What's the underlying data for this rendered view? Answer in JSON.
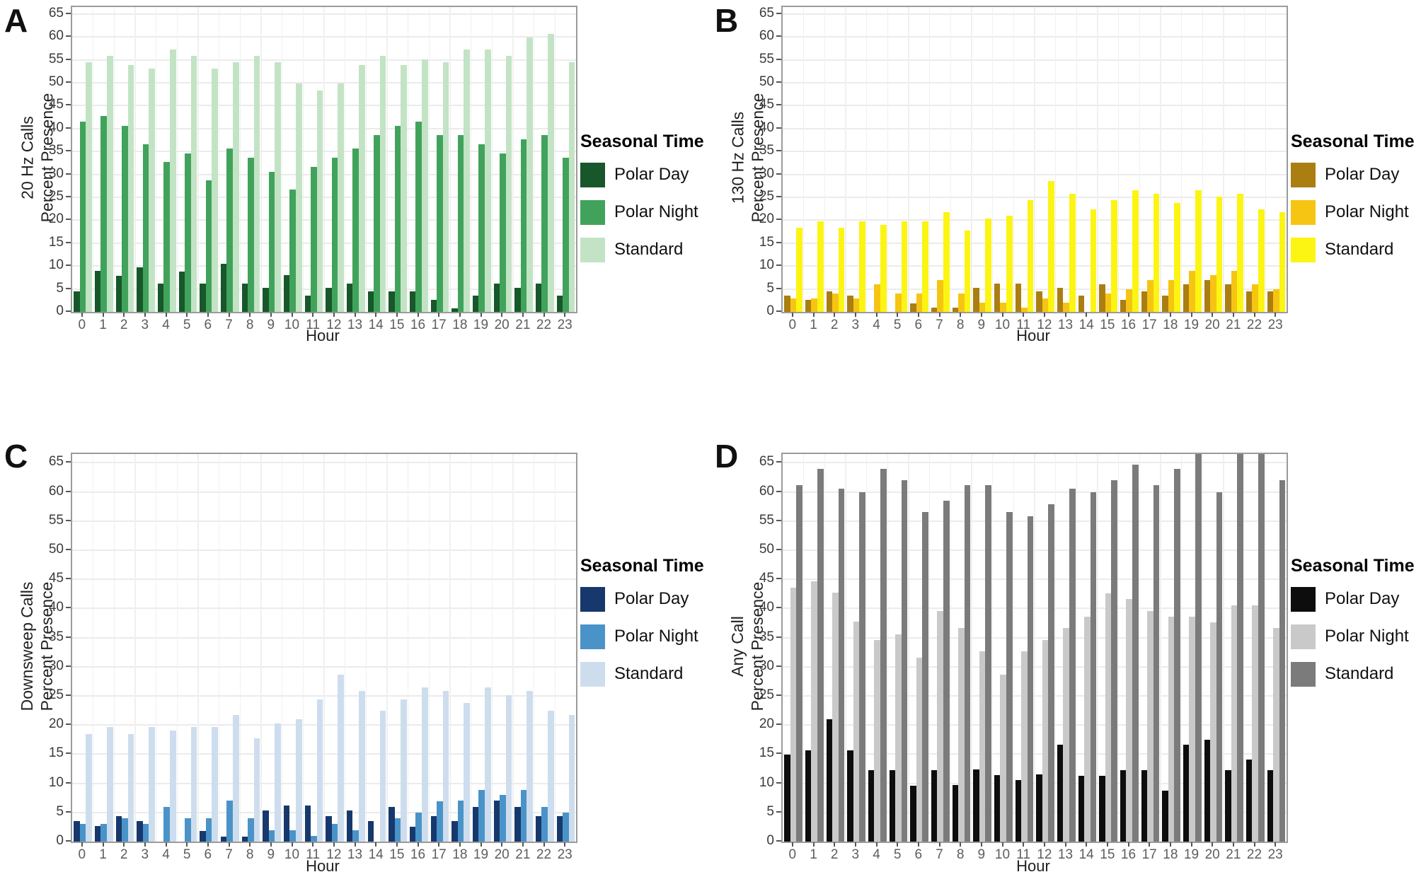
{
  "figure": {
    "legend_title": "Seasonal Time",
    "xlabel": "Hour",
    "hours": [
      "0",
      "1",
      "2",
      "3",
      "4",
      "5",
      "6",
      "7",
      "8",
      "9",
      "10",
      "11",
      "12",
      "13",
      "14",
      "15",
      "16",
      "17",
      "18",
      "19",
      "20",
      "21",
      "22",
      "23"
    ],
    "yticks": [
      0,
      5,
      10,
      15,
      20,
      25,
      30,
      35,
      40,
      45,
      50,
      55,
      60,
      65
    ],
    "grid_color": "#ebebeb",
    "plot_border_color": "#9b9b9b"
  },
  "chart_data": [
    {
      "panel_label": "A",
      "type": "bar",
      "ylabel_line1": "20 Hz Calls",
      "ylabel_line2": "Percent Presence",
      "xlabel": "Hour",
      "ylim": [
        0,
        65
      ],
      "grid": true,
      "legend_position": "right",
      "legend_title": "Seasonal Time",
      "categories": [
        0,
        1,
        2,
        3,
        4,
        5,
        6,
        7,
        8,
        9,
        10,
        11,
        12,
        13,
        14,
        15,
        16,
        17,
        18,
        19,
        20,
        21,
        22,
        23
      ],
      "series": [
        {
          "name": "Polar Day",
          "color": "#17572a",
          "values": [
            4.5,
            8.9,
            7.9,
            9.7,
            6.2,
            8.8,
            6.2,
            10.5,
            6.2,
            5.3,
            8.0,
            3.6,
            5.3,
            6.2,
            4.4,
            4.4,
            4.5,
            2.7,
            0.8,
            3.6,
            6.2,
            5.3,
            6.2,
            3.6
          ]
        },
        {
          "name": "Polar Night",
          "color": "#41a35b",
          "values": [
            41.5,
            42.7,
            40.6,
            36.6,
            32.7,
            34.6,
            28.7,
            35.6,
            33.7,
            30.6,
            26.7,
            31.7,
            33.7,
            35.6,
            38.6,
            40.6,
            41.5,
            38.6,
            38.6,
            36.6,
            34.6,
            37.7,
            38.6,
            33.7
          ]
        },
        {
          "name": "Standard",
          "color": "#c3e3c5",
          "values": [
            54.5,
            55.8,
            53.8,
            53.1,
            57.2,
            55.8,
            53.1,
            54.5,
            55.8,
            54.5,
            49.8,
            48.3,
            49.8,
            53.8,
            55.8,
            53.8,
            55.1,
            54.5,
            57.2,
            57.2,
            55.8,
            59.9,
            60.6,
            54.5
          ]
        }
      ]
    },
    {
      "panel_label": "B",
      "type": "bar",
      "ylabel_line1": "130 Hz Calls",
      "ylabel_line2": "Percent Presence",
      "xlabel": "Hour",
      "ylim": [
        0,
        65
      ],
      "grid": true,
      "legend_position": "right",
      "legend_title": "Seasonal Time",
      "categories": [
        0,
        1,
        2,
        3,
        4,
        5,
        6,
        7,
        8,
        9,
        10,
        11,
        12,
        13,
        14,
        15,
        16,
        17,
        18,
        19,
        20,
        21,
        22,
        23
      ],
      "series": [
        {
          "name": "Polar Day",
          "color": "#ab7e12",
          "values": [
            3.5,
            2.7,
            4.4,
            3.5,
            0,
            0,
            1.8,
            0.9,
            0.9,
            5.3,
            6.2,
            6.2,
            4.4,
            5.3,
            3.5,
            6.0,
            2.6,
            4.4,
            3.5,
            6.0,
            7.0,
            6.0,
            4.4,
            4.4
          ]
        },
        {
          "name": "Polar Night",
          "color": "#f6c513",
          "values": [
            3.0,
            3.0,
            4.0,
            3.0,
            6.0,
            4.0,
            4.0,
            7.0,
            4.0,
            2.0,
            2.0,
            1.0,
            3.0,
            2.0,
            0,
            4.0,
            5.0,
            6.9,
            7.0,
            8.9,
            8.0,
            8.9,
            6.0,
            5.0
          ]
        },
        {
          "name": "Standard",
          "color": "#fcf413",
          "values": [
            18.4,
            19.7,
            18.4,
            19.7,
            19.0,
            19.7,
            19.7,
            21.7,
            17.7,
            20.3,
            21.0,
            24.4,
            28.6,
            25.8,
            22.4,
            24.4,
            26.5,
            25.8,
            23.8,
            26.5,
            25.1,
            25.8,
            22.4,
            21.7
          ]
        }
      ]
    },
    {
      "panel_label": "C",
      "type": "bar",
      "ylabel_line1": "Downsweep Calls",
      "ylabel_line2": "Percent Presence",
      "xlabel": "Hour",
      "ylim": [
        0,
        65
      ],
      "grid": true,
      "legend_position": "right",
      "legend_title": "Seasonal Time",
      "categories": [
        0,
        1,
        2,
        3,
        4,
        5,
        6,
        7,
        8,
        9,
        10,
        11,
        12,
        13,
        14,
        15,
        16,
        17,
        18,
        19,
        20,
        21,
        22,
        23
      ],
      "series": [
        {
          "name": "Polar Day",
          "color": "#17386c",
          "values": [
            3.5,
            2.7,
            4.4,
            3.5,
            0,
            0,
            1.8,
            0.9,
            0.9,
            5.3,
            6.2,
            6.2,
            4.4,
            5.3,
            3.5,
            6.0,
            2.6,
            4.4,
            3.5,
            6.0,
            7.0,
            6.0,
            4.4,
            4.4
          ]
        },
        {
          "name": "Polar Night",
          "color": "#4a93c8",
          "values": [
            3.0,
            3.0,
            4.0,
            3.0,
            6.0,
            4.0,
            4.0,
            7.0,
            4.0,
            1.9,
            2.0,
            1.0,
            3.0,
            2.0,
            0,
            4.0,
            5.0,
            6.9,
            7.0,
            8.9,
            8.0,
            8.9,
            6.0,
            5.0
          ]
        },
        {
          "name": "Standard",
          "color": "#cdddee",
          "values": [
            18.4,
            19.7,
            18.4,
            19.7,
            19.0,
            19.7,
            19.7,
            21.7,
            17.7,
            20.3,
            21.0,
            24.4,
            28.6,
            25.8,
            22.4,
            24.4,
            26.5,
            25.8,
            23.8,
            26.5,
            25.1,
            25.8,
            22.4,
            21.7
          ]
        }
      ]
    },
    {
      "panel_label": "D",
      "type": "bar",
      "ylabel_line1": "Any Call",
      "ylabel_line2": "Percent Presence",
      "xlabel": "Hour",
      "ylim": [
        0,
        65
      ],
      "grid": true,
      "legend_position": "right",
      "legend_title": "Seasonal Time",
      "note": "Standard bars at hours 19, 21 and 22 exceed the axis maximum and are clipped at the plot top",
      "categories": [
        0,
        1,
        2,
        3,
        4,
        5,
        6,
        7,
        8,
        9,
        10,
        11,
        12,
        13,
        14,
        15,
        16,
        17,
        18,
        19,
        20,
        21,
        22,
        23
      ],
      "series": [
        {
          "name": "Polar Day",
          "color": "#0d0d0d",
          "values": [
            14.9,
            15.7,
            21.0,
            15.7,
            12.2,
            12.2,
            9.6,
            12.2,
            9.7,
            12.4,
            11.4,
            10.6,
            11.5,
            16.6,
            11.3,
            11.3,
            12.3,
            12.3,
            8.7,
            16.6,
            17.5,
            12.3,
            14.1,
            12.3
          ]
        },
        {
          "name": "Polar Night",
          "color": "#c9c9c9",
          "values": [
            43.6,
            44.6,
            42.7,
            37.7,
            34.6,
            35.6,
            31.6,
            39.6,
            36.6,
            32.7,
            28.7,
            32.7,
            34.6,
            36.6,
            38.6,
            42.6,
            41.6,
            39.6,
            38.6,
            38.6,
            37.6,
            40.5,
            40.5,
            36.6
          ]
        },
        {
          "name": "Standard",
          "color": "#7b7b7b",
          "values": [
            61.2,
            64.0,
            60.5,
            59.9,
            64.0,
            62.0,
            56.5,
            58.5,
            61.2,
            61.2,
            56.5,
            55.8,
            57.9,
            60.5,
            59.9,
            62.0,
            64.7,
            61.2,
            64.0,
            66.0,
            59.9,
            66.0,
            66.0,
            62.0
          ]
        }
      ]
    }
  ]
}
